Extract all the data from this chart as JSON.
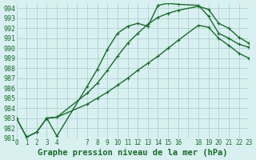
{
  "bg_color": "#d8f0f0",
  "grid_color": "#aacccc",
  "line_color": "#1a6b2a",
  "marker_color": "#1a6b2a",
  "xlabel": "Graphe pression niveau de la mer (hPa)",
  "ylim": [
    981,
    994.5
  ],
  "xlim": [
    0,
    23
  ],
  "yticks": [
    981,
    982,
    983,
    984,
    985,
    986,
    987,
    988,
    989,
    990,
    991,
    992,
    993,
    994
  ],
  "xtick_positions": [
    0,
    1,
    2,
    3,
    4,
    7,
    8,
    9,
    10,
    11,
    12,
    13,
    14,
    15,
    16,
    18,
    19,
    20,
    21,
    22,
    23
  ],
  "xtick_labels": [
    "0",
    "1",
    "2",
    "3",
    "4",
    "7",
    "8",
    "9",
    "10",
    "11",
    "12",
    "13",
    "14",
    "15",
    "16",
    "18",
    "19",
    "20",
    "21",
    "22",
    "23"
  ],
  "line1_x": [
    0,
    1,
    2,
    3,
    4,
    7,
    8,
    9,
    10,
    11,
    12,
    13,
    14,
    15,
    16,
    18,
    19,
    20,
    21,
    22,
    23
  ],
  "line1_y": [
    983.0,
    981.1,
    981.6,
    983.0,
    981.2,
    986.2,
    987.9,
    989.9,
    991.5,
    992.2,
    992.5,
    992.2,
    994.3,
    994.5,
    994.4,
    994.3,
    993.2,
    991.5,
    991.0,
    990.4,
    990.1
  ],
  "line2_x": [
    0,
    1,
    2,
    3,
    4,
    7,
    8,
    9,
    10,
    11,
    12,
    13,
    14,
    15,
    16,
    18,
    19,
    20,
    21,
    22,
    23
  ],
  "line2_y": [
    983.0,
    981.1,
    981.6,
    983.0,
    983.1,
    984.4,
    985.0,
    985.6,
    986.3,
    987.0,
    987.8,
    988.5,
    989.2,
    990.0,
    990.8,
    992.3,
    992.1,
    991.0,
    990.3,
    989.5,
    989.0
  ],
  "line3_x": [
    3,
    4,
    7,
    8,
    9,
    10,
    11,
    12,
    13,
    14,
    15,
    16,
    18,
    19,
    20,
    21,
    22,
    23
  ],
  "line3_y": [
    983.0,
    983.1,
    985.5,
    986.5,
    987.8,
    989.2,
    990.5,
    991.5,
    992.4,
    993.1,
    993.5,
    993.8,
    994.2,
    993.9,
    992.5,
    992.0,
    991.1,
    990.5
  ]
}
